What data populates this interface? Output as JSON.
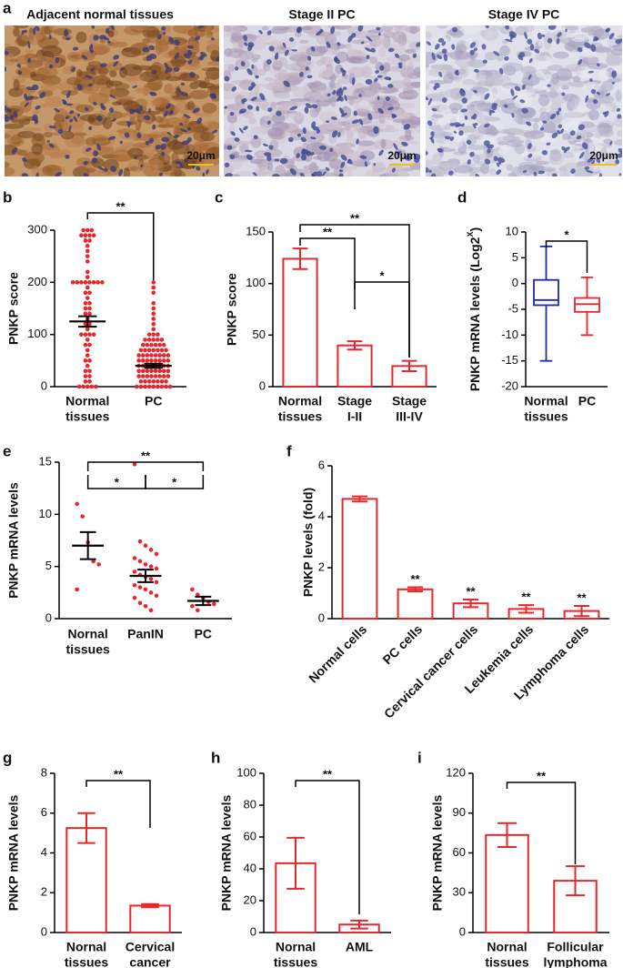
{
  "figure_a": {
    "panel": "a",
    "images": [
      {
        "label": "Adjacent normal tissues",
        "scale": "20μm"
      },
      {
        "label": "Stage II PC",
        "scale": "20μm"
      },
      {
        "label": "Stage IV PC",
        "scale": "20μm"
      }
    ]
  },
  "chart_data": [
    {
      "panel": "b",
      "type": "dotplot",
      "ylabel": "PNKP score",
      "categories": [
        [
          "Normal",
          "tissues"
        ],
        [
          "PC"
        ]
      ],
      "ylim": [
        0,
        300
      ],
      "yticks": [
        0,
        100,
        200,
        300
      ],
      "color": "#e8262b",
      "points": [
        [
          300,
          300,
          300,
          290,
          290,
          290,
          290,
          280,
          280,
          270,
          260,
          250,
          240,
          220,
          210,
          200,
          200,
          200,
          200,
          200,
          200,
          200,
          200,
          190,
          180,
          180,
          170,
          160,
          160,
          150,
          150,
          140,
          140,
          130,
          120,
          120,
          110,
          100,
          100,
          100,
          100,
          90,
          80,
          80,
          70,
          60,
          50,
          50,
          40,
          30,
          30,
          20,
          20,
          10,
          10,
          0,
          0,
          0,
          0,
          0
        ],
        [
          200,
          190,
          180,
          160,
          150,
          140,
          130,
          120,
          110,
          100,
          100,
          100,
          90,
          90,
          90,
          90,
          90,
          80,
          80,
          80,
          80,
          80,
          80,
          70,
          70,
          70,
          70,
          70,
          70,
          70,
          60,
          60,
          60,
          60,
          60,
          60,
          60,
          60,
          50,
          50,
          50,
          50,
          50,
          50,
          50,
          50,
          40,
          40,
          40,
          40,
          40,
          40,
          40,
          40,
          30,
          30,
          30,
          30,
          30,
          30,
          30,
          30,
          20,
          20,
          20,
          20,
          20,
          20,
          20,
          20,
          10,
          10,
          10,
          10,
          10,
          10,
          10,
          0,
          0,
          0,
          0,
          0,
          0,
          0,
          0,
          0
        ]
      ],
      "means": [
        125,
        40
      ],
      "sems": [
        10,
        4
      ],
      "significance": [
        {
          "from": 0,
          "to": 1,
          "label": "**"
        }
      ]
    },
    {
      "panel": "c",
      "type": "bar",
      "ylabel": "PNKP score",
      "categories": [
        [
          "Normal",
          "tissues"
        ],
        [
          "Stage",
          "I-II"
        ],
        [
          "Stage",
          "III-IV"
        ]
      ],
      "ylim": [
        0,
        150
      ],
      "yticks": [
        0,
        50,
        100,
        150
      ],
      "color": "#e8262b",
      "values": [
        124,
        40,
        20
      ],
      "errors": [
        10,
        4,
        5
      ],
      "significance": [
        {
          "from": 0,
          "to": 1,
          "label": "**"
        },
        {
          "from": 0,
          "to": 2,
          "label": "**"
        },
        {
          "from": 1,
          "to": 2,
          "label": "*"
        }
      ]
    },
    {
      "panel": "d",
      "type": "box",
      "ylabel": {
        "text": "PNKP mRNA levels (Log2",
        "sup": "X",
        "end": ")"
      },
      "categories": [
        [
          "Normal",
          "tissues"
        ],
        [
          "PC"
        ]
      ],
      "ylim": [
        -20,
        10
      ],
      "yticks": [
        -20,
        -15,
        -10,
        -5,
        0,
        5,
        10
      ],
      "boxes": [
        {
          "min": -15,
          "q1": -4.2,
          "median": -3.2,
          "q3": 0.7,
          "max": 7.2,
          "color": "#1c2aa6"
        },
        {
          "min": -10,
          "q1": -5.5,
          "median": -4,
          "q3": -2.8,
          "max": 1.2,
          "color": "#e8262b"
        }
      ],
      "significance": [
        {
          "from": 0,
          "to": 1,
          "label": "*"
        }
      ]
    },
    {
      "panel": "e",
      "type": "dotplot",
      "ylabel": "PNKP mRNA levels",
      "categories": [
        [
          "Nornal",
          "tissues"
        ],
        [
          "PanIN"
        ],
        [
          "PC"
        ]
      ],
      "ylim": [
        0,
        15
      ],
      "yticks": [
        0,
        5,
        10,
        15
      ],
      "color": "#e8262b",
      "points": [
        [
          11,
          9.8,
          7.3,
          5.5,
          5.2,
          2.8
        ],
        [
          14.8,
          7.4,
          7,
          6.6,
          6.2,
          5.8,
          5.5,
          5.2,
          5,
          4.8,
          4.5,
          4.2,
          4,
          3.8,
          3.5,
          3.2,
          3,
          2.8,
          2.5,
          2.2,
          2,
          1.5,
          1.2,
          0.8
        ],
        [
          2.8,
          2.3,
          2,
          1.6,
          1.4,
          1.2,
          0.8
        ]
      ],
      "means": [
        7,
        4.1,
        1.7
      ],
      "sems": [
        1.3,
        0.6,
        0.4
      ],
      "significance": [
        {
          "from": 0,
          "to": 1,
          "label": "*"
        },
        {
          "from": 1,
          "to": 2,
          "label": "*"
        },
        {
          "from": 0,
          "to": 2,
          "label": "**"
        }
      ]
    },
    {
      "panel": "f",
      "type": "bar",
      "ylabel": "PNKP levels (fold)",
      "categories": [
        [
          "Normal cells"
        ],
        [
          "PC cells"
        ],
        [
          "Cervical cancer cells"
        ],
        [
          "Leukemia cells"
        ],
        [
          "Lymphoma cells"
        ]
      ],
      "ylim": [
        0,
        6
      ],
      "yticks": [
        0,
        2,
        4,
        6
      ],
      "color": "#e8262b",
      "values": [
        4.7,
        1.15,
        0.6,
        0.38,
        0.3
      ],
      "errors": [
        0.1,
        0.08,
        0.15,
        0.15,
        0.2
      ],
      "annotations": [
        null,
        "**",
        "**",
        "**",
        "**"
      ],
      "significance": []
    },
    {
      "panel": "g",
      "type": "bar",
      "ylabel": "PNKP mRNA levels",
      "categories": [
        [
          "Nornal",
          "tissues"
        ],
        [
          "Cervical",
          "cancer"
        ]
      ],
      "ylim": [
        0,
        8
      ],
      "yticks": [
        0,
        2,
        4,
        6,
        8
      ],
      "color": "#e8262b",
      "values": [
        5.25,
        1.35
      ],
      "errors": [
        0.75,
        0.08
      ],
      "significance": [
        {
          "from": 0,
          "to": 1,
          "label": "**"
        }
      ]
    },
    {
      "panel": "h",
      "type": "bar",
      "ylabel": "PNKP mRNA levels",
      "categories": [
        [
          "Nornal",
          "tissues"
        ],
        [
          "AML"
        ]
      ],
      "ylim": [
        0,
        100
      ],
      "yticks": [
        0,
        20,
        40,
        60,
        80,
        100
      ],
      "color": "#e8262b",
      "values": [
        43.5,
        5
      ],
      "errors": [
        16,
        2.5
      ],
      "significance": [
        {
          "from": 0,
          "to": 1,
          "label": "**"
        }
      ]
    },
    {
      "panel": "i",
      "type": "bar",
      "ylabel": "PNKP mRNA levels",
      "categories": [
        [
          "Nornal",
          "tissues"
        ],
        [
          "Follicular",
          "lymphoma"
        ]
      ],
      "ylim": [
        0,
        120
      ],
      "yticks": [
        0,
        30,
        60,
        90,
        120
      ],
      "color": "#e8262b",
      "values": [
        73.5,
        39
      ],
      "errors": [
        9,
        11
      ],
      "significance": [
        {
          "from": 0,
          "to": 1,
          "label": "**"
        }
      ]
    }
  ]
}
